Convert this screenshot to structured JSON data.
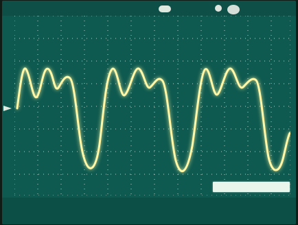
{
  "screen": {
    "top_left_text": "",
    "top_center_text": "",
    "bottom_ch1": "",
    "bottom_timebase": "",
    "bottom_ch2": "",
    "bottom_pos": "",
    "frequency_readout": ""
  },
  "colors": {
    "screen_bg": "#0f5a50",
    "grid": "#dfeee8",
    "trace": "#fff7a8",
    "label": "#d9efe6"
  },
  "waveform": {
    "type": "periodic_multipeak",
    "cycles_visible": 3
  }
}
